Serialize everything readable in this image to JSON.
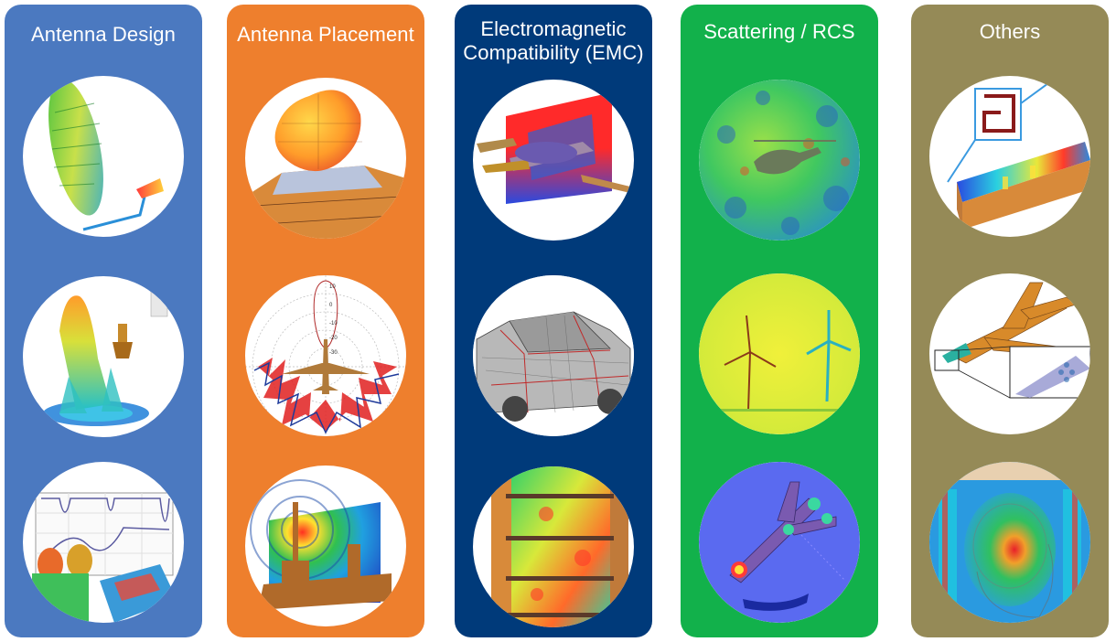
{
  "columns": [
    {
      "title": "Antenna Design",
      "color": "#4b79c0",
      "images": [
        "reflector-antenna-icon",
        "horn-antenna-pattern-icon",
        "antenna-s-parameter-icon"
      ]
    },
    {
      "title": "Antenna Placement",
      "color": "#ee7f2d",
      "images": [
        "car-antenna-pattern-icon",
        "aircraft-polar-plot-icon",
        "ship-field-plot-icon"
      ]
    },
    {
      "title": "Electromagnetic\nCompatibility (EMC)",
      "color": "#003a7a",
      "images": [
        "aircraft-field-plane-icon",
        "car-wireframe-icon",
        "building-field-icon"
      ]
    },
    {
      "title": "Scattering / RCS",
      "color": "#12b14b",
      "images": [
        "helicopter-rcs-sphere-icon",
        "wind-turbine-icon",
        "aircraft-rcs-icon"
      ]
    },
    {
      "title": "Others",
      "color": "#958a57",
      "images": [
        "microstrip-filter-icon",
        "fighter-jet-radome-icon",
        "head-sar-icon"
      ]
    }
  ],
  "polar_tick_labels": [
    "10",
    "0",
    "-10",
    "-20",
    "-30"
  ]
}
